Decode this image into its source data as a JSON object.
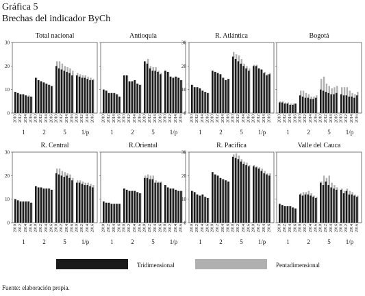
{
  "title": [
    "Gráfica 5",
    "Brechas del indicador ByCh"
  ],
  "source": "Fuente: elaboración propia.",
  "legend": [
    {
      "name": "Tridimensional",
      "color": "#1a1a1a"
    },
    {
      "name": "Pentadimensional",
      "color": "#b0b0b0"
    }
  ],
  "ylim": [
    0,
    30
  ],
  "yticks": [
    0,
    10,
    20,
    30
  ],
  "groups": [
    "1",
    "2",
    "5",
    "1/p"
  ],
  "years": [
    "2010",
    null,
    "2012",
    null,
    "2014",
    null,
    "2016"
  ],
  "chart_data": [
    {
      "type": "bar",
      "title": "Total nacional",
      "series": [
        {
          "values": [
            9,
            8.5,
            8,
            8,
            7.5,
            7,
            7,
            15,
            14,
            13.5,
            13,
            12.5,
            12,
            11.5,
            20,
            19,
            18.5,
            18,
            17.5,
            17,
            16,
            16,
            15.5,
            15,
            15,
            14.5,
            14,
            14
          ]
        },
        {
          "values": [
            9,
            8.5,
            8,
            8,
            7.5,
            7.5,
            7,
            15,
            14,
            13.5,
            13,
            12.5,
            12,
            11.5,
            22,
            22,
            21,
            20,
            19.5,
            19,
            18,
            17,
            16.5,
            16,
            16,
            15.5,
            15,
            14.5
          ]
        }
      ]
    },
    {
      "type": "bar",
      "title": "Antioquia",
      "series": [
        {
          "values": [
            10,
            9.5,
            8.5,
            8.5,
            8.5,
            8,
            7,
            16,
            16,
            13.5,
            13.5,
            14,
            12.5,
            12,
            22,
            21,
            19,
            18,
            18,
            17.5,
            16.5,
            18,
            17.5,
            15.5,
            15,
            15.5,
            15,
            14
          ]
        },
        {
          "values": [
            10,
            9.5,
            8.5,
            8.5,
            8.5,
            8,
            7,
            16,
            16,
            13.5,
            13.5,
            14,
            12.5,
            12,
            22,
            23,
            20,
            19.5,
            19.5,
            18,
            17,
            18,
            17.5,
            15.5,
            15,
            15.5,
            15,
            14
          ]
        }
      ]
    },
    {
      "type": "bar",
      "title": "R. Atlántica",
      "series": [
        {
          "values": [
            12,
            11,
            11,
            10.5,
            9.5,
            9,
            8.5,
            18,
            17.5,
            17,
            16.5,
            15,
            14,
            14.5,
            24,
            23,
            22,
            21,
            20,
            19,
            18,
            20,
            20,
            19,
            18.5,
            17,
            16,
            16.5
          ]
        },
        {
          "values": [
            12,
            11,
            11,
            10.5,
            9.5,
            9,
            8.5,
            18,
            17.5,
            17,
            16.5,
            15,
            14,
            14.5,
            26,
            25,
            24.5,
            23,
            21,
            20,
            19,
            20.5,
            20.5,
            19,
            18.5,
            17.5,
            16.5,
            17
          ]
        }
      ]
    },
    {
      "type": "bar",
      "title": "Bogotá",
      "series": [
        {
          "values": [
            4.5,
            4.5,
            4,
            4,
            3.5,
            3.5,
            4,
            7.5,
            7,
            6.5,
            6.5,
            6,
            6,
            6.5,
            10,
            9.5,
            9,
            8.5,
            8,
            8,
            8.5,
            8,
            7.5,
            7.5,
            7,
            7,
            6.5,
            7.5
          ]
        },
        {
          "values": [
            5,
            5,
            4.5,
            4.5,
            4,
            4,
            4,
            9.5,
            9.5,
            8.5,
            8,
            7,
            7,
            7.5,
            14.5,
            15.5,
            12.5,
            11.5,
            10.5,
            11,
            11.5,
            11,
            11,
            11,
            9.5,
            8.5,
            8,
            9
          ]
        }
      ]
    },
    {
      "type": "bar",
      "title": "R. Central",
      "series": [
        {
          "values": [
            10,
            9.5,
            9,
            9,
            9,
            9,
            8.5,
            15.5,
            15,
            15,
            14.5,
            14.5,
            14.5,
            14,
            21,
            20.5,
            20,
            19.5,
            20,
            19,
            18,
            17,
            17,
            16.5,
            16,
            16,
            15.5,
            15
          ]
        },
        {
          "values": [
            10,
            9.5,
            9,
            9,
            9,
            9,
            8.5,
            15.5,
            15,
            15,
            14.5,
            14.5,
            14.5,
            14,
            23,
            23,
            22,
            21.5,
            21,
            20.5,
            19,
            18,
            18,
            17.5,
            17,
            17,
            16.5,
            16
          ]
        }
      ]
    },
    {
      "type": "bar",
      "title": "R.Oriental",
      "series": [
        {
          "values": [
            9,
            8.5,
            8.5,
            8,
            8,
            8,
            8,
            14.5,
            14,
            13.5,
            13.5,
            13.5,
            13,
            12.5,
            19,
            19,
            18.5,
            18.5,
            17,
            17,
            17,
            16,
            15,
            14.5,
            14.5,
            14,
            13.5,
            13.5
          ]
        },
        {
          "values": [
            9,
            8.5,
            8.5,
            8,
            8,
            8,
            8,
            14.5,
            14,
            13.5,
            13.5,
            13.5,
            13,
            12.5,
            20,
            20.5,
            20,
            20,
            18,
            17.5,
            17.5,
            16,
            15,
            14.5,
            14.5,
            14,
            13.5,
            13.5
          ]
        }
      ]
    },
    {
      "type": "bar",
      "title": "R. Pacífica",
      "series": [
        {
          "values": [
            13.5,
            13,
            12,
            11.5,
            12,
            11,
            10.5,
            21.5,
            20.5,
            20,
            19,
            18.5,
            18,
            17.5,
            28,
            27.5,
            27,
            26,
            25,
            24.5,
            24,
            24,
            23.5,
            23,
            22,
            21,
            20.5,
            20
          ]
        },
        {
          "values": [
            13.5,
            13,
            12,
            11.5,
            12,
            11,
            10.5,
            21.5,
            20.5,
            20,
            19,
            18.5,
            18,
            17.5,
            29,
            29.5,
            28.5,
            27,
            26,
            25.5,
            24.5,
            24.5,
            24,
            23.5,
            23,
            22,
            21,
            21
          ]
        }
      ]
    },
    {
      "type": "bar",
      "title": "Valle del Cauca",
      "series": [
        {
          "values": [
            8,
            7.5,
            7,
            7,
            7,
            6.5,
            6,
            12,
            11.5,
            12,
            12,
            11.5,
            11,
            10.5,
            17,
            16,
            17.5,
            16,
            15,
            14.5,
            14,
            14,
            12.5,
            13.5,
            12,
            12,
            11.5,
            11
          ]
        },
        {
          "values": [
            8,
            7.5,
            7,
            7,
            7,
            6.5,
            6,
            12.5,
            13,
            13,
            13.5,
            12.5,
            11.5,
            11,
            17.5,
            20,
            19,
            20,
            17,
            16,
            15,
            14.5,
            13.5,
            14.5,
            13.5,
            13,
            12,
            11.5
          ]
        }
      ]
    }
  ]
}
